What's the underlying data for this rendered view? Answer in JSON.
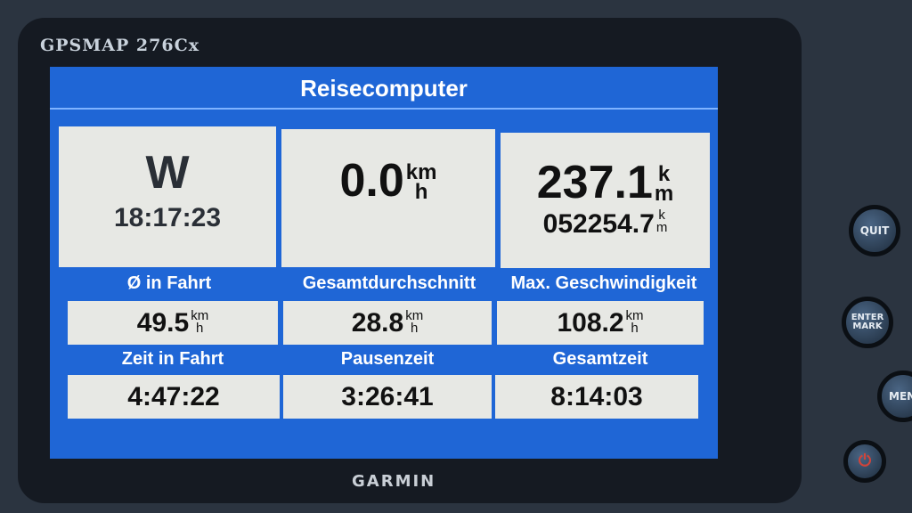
{
  "device": {
    "model": "GPSMAP 276Cx",
    "brand": "GARMIN",
    "buttons": [
      "QUIT",
      "ENTER MARK",
      "MENU"
    ],
    "power_icon": "power-icon"
  },
  "screen": {
    "title": "Reisecomputer",
    "top": [
      {
        "value": "W",
        "sub": "18:17:23"
      },
      {
        "value": "0.0",
        "unit_top": "km",
        "unit_bottom": "h"
      },
      {
        "value": "237.1",
        "unit_top": "k",
        "unit_bottom": "m",
        "sub": "052254.7",
        "sub_unit_top": "k",
        "sub_unit_bottom": "m"
      }
    ],
    "fields": [
      {
        "label": "Ø in Fahrt",
        "value": "49.5",
        "unit_top": "km",
        "unit_bottom": "h"
      },
      {
        "label": "Gesamtdurchschnitt",
        "value": "28.8",
        "unit_top": "km",
        "unit_bottom": "h"
      },
      {
        "label": "Max. Geschwindigkeit",
        "value": "108.2",
        "unit_top": "km",
        "unit_bottom": "h"
      },
      {
        "label": "Zeit in Fahrt",
        "value": "4:47:22"
      },
      {
        "label": "Pausenzeit",
        "value": "3:26:41"
      },
      {
        "label": "Gesamtzeit",
        "value": "8:14:03"
      }
    ]
  },
  "colors": {
    "screen_blue": "#1f66d6",
    "cell_bg": "#e7e8e4"
  }
}
